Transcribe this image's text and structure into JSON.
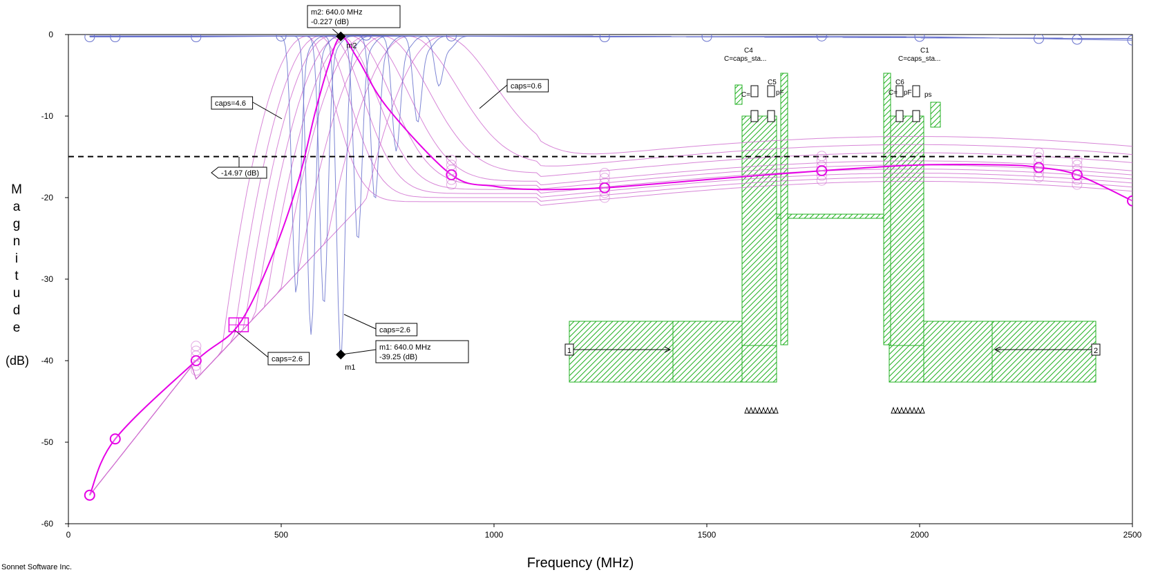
{
  "chart_data": {
    "type": "line",
    "xlabel": "Frequency (MHz)",
    "ylabel_letters": [
      "M",
      "a",
      "g",
      "n",
      "i",
      "t",
      "u",
      "d",
      "e"
    ],
    "ylabel_unit": "(dB)",
    "xlim": [
      0,
      2500
    ],
    "ylim": [
      -60,
      0
    ],
    "xticks": [
      0,
      500,
      1000,
      1500,
      2000,
      2500
    ],
    "yticks": [
      0,
      -10,
      -20,
      -30,
      -40,
      -50,
      -60
    ],
    "grid": false,
    "reference_line": {
      "value": -14.97,
      "label": "-14.97  (dB)"
    },
    "markers": [
      {
        "id": "m2",
        "label_line1": "m2: 640.0 MHz",
        "label_line2": "-0.227  (dB)",
        "x": 640,
        "y": -0.227
      },
      {
        "id": "m1",
        "label_line1": "m1: 640.0 MHz",
        "label_line2": "-39.25  (dB)",
        "x": 640,
        "y": -39.25
      }
    ],
    "annotations": [
      {
        "text": "caps=4.6"
      },
      {
        "text": "caps=0.6"
      },
      {
        "text": "caps=2.6"
      },
      {
        "text": "caps=2.6"
      }
    ],
    "highlighted_s21": {
      "x": [
        50,
        110,
        300,
        400,
        480,
        540,
        580,
        610,
        640,
        680,
        750,
        900,
        1000,
        1100,
        1260,
        1500,
        1770,
        2000,
        2200,
        2280,
        2370,
        2500
      ],
      "y": [
        -56.5,
        -49.6,
        -40.0,
        -35.6,
        -27.0,
        -18.0,
        -9.5,
        -4.0,
        -0.3,
        -3.0,
        -9.0,
        -17.2,
        -18.6,
        -19.0,
        -18.8,
        -17.8,
        -16.7,
        -16.0,
        -16.0,
        -16.3,
        -17.2,
        -20.4
      ]
    },
    "bg_s11_points": [
      [
        50,
        -0.3
      ],
      [
        110,
        -0.3
      ],
      [
        300,
        -0.3
      ],
      [
        500,
        -0.2
      ],
      [
        700,
        -0.1
      ],
      [
        900,
        -0.2
      ],
      [
        1260,
        -0.3
      ],
      [
        1500,
        -0.25
      ],
      [
        1770,
        -0.2
      ],
      [
        2000,
        -0.25
      ],
      [
        2280,
        -0.5
      ],
      [
        2370,
        -0.6
      ],
      [
        2500,
        -0.7
      ]
    ],
    "s21_family_centers": [
      560,
      590,
      615,
      640,
      665,
      700,
      740,
      800,
      880
    ],
    "s21_family_tails": [
      -20.5,
      -20.0,
      -19.5,
      -19.0,
      -18.5,
      -18.0,
      -17.0,
      -16.0,
      -15.0
    ],
    "s11_family": [
      {
        "dip_x": 535,
        "dip_y": -31.5
      },
      {
        "dip_x": 570,
        "dip_y": -36.5
      },
      {
        "dip_x": 600,
        "dip_y": -33.0
      },
      {
        "dip_x": 640,
        "dip_y": -39.25
      },
      {
        "dip_x": 680,
        "dip_y": -25.0
      },
      {
        "dip_x": 720,
        "dip_y": -20.0
      },
      {
        "dip_x": 770,
        "dip_y": -14.0
      },
      {
        "dip_x": 820,
        "dip_y": -10.5
      },
      {
        "dip_x": 870,
        "dip_y": -6.0
      }
    ],
    "colors": {
      "highlight": "#e600e6",
      "family": "#d070d0",
      "s11": "#6670cc",
      "refline": "#000000",
      "layout_fill": "#20b020",
      "marker": "#000000"
    }
  },
  "layout_overlay": {
    "port_labels": [
      "1",
      "2"
    ],
    "component_labels": [
      "C4",
      "C=caps_sta...",
      "C5",
      "C=",
      "pF",
      "C1",
      "C=caps_sta...",
      "C6",
      "C=",
      "pF",
      "ps"
    ]
  },
  "credit": "Sonnet Software Inc."
}
